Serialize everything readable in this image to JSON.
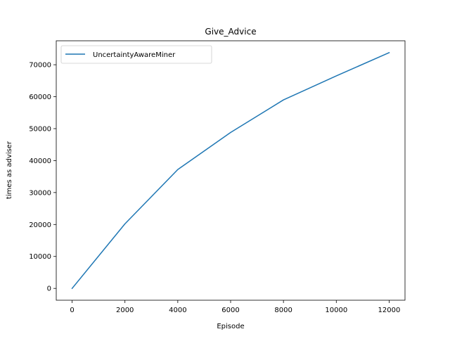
{
  "chart_data": {
    "type": "line",
    "title": "Give_Advice",
    "xlabel": "Episode",
    "ylabel": "times as adviser",
    "xlim": [
      -600,
      12600
    ],
    "ylim": [
      -3700,
      77500
    ],
    "xticks": [
      0,
      2000,
      4000,
      6000,
      8000,
      10000,
      12000
    ],
    "yticks": [
      0,
      10000,
      20000,
      30000,
      40000,
      50000,
      60000,
      70000
    ],
    "grid": false,
    "legend_position": "top-left",
    "series": [
      {
        "name": "UncertaintyAwareMiner",
        "color": "#1f77b4",
        "x": [
          0,
          2000,
          4000,
          6000,
          8000,
          10000,
          12000
        ],
        "y": [
          0,
          20200,
          37200,
          48800,
          59000,
          66500,
          73800
        ]
      }
    ]
  }
}
